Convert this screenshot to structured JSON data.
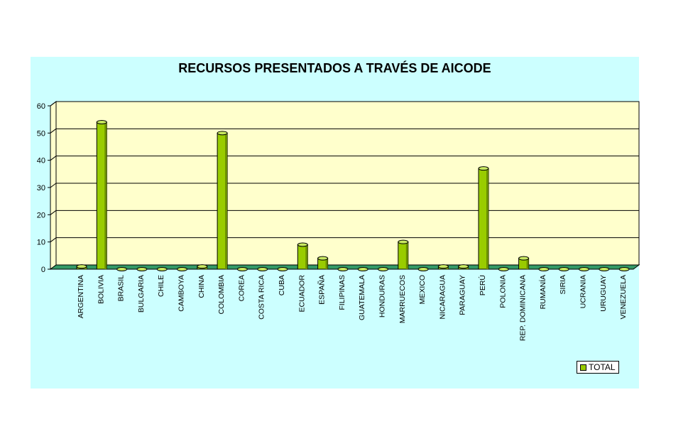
{
  "colors": {
    "background": "#ccffff",
    "plot": "#ffffcc",
    "floor": "#339966",
    "bar": "#99cc00",
    "bar_dark": "#6b8f00",
    "bar_top": "#c8e860"
  },
  "chart_data": {
    "type": "bar",
    "title": "RECURSOS  PRESENTADOS A TRAVÉS DE AICODE",
    "categories": [
      "ARGENTINA",
      "BOLIVIA",
      "BRASIL",
      "BULGARIA",
      "CHILE",
      "CAMBOYA",
      "CHINA",
      "COLOMBIA",
      "COREA",
      "COSTA RICA",
      "CUBA",
      "ECUADOR",
      "ESPAÑA",
      "FILIPINAS",
      "GUATEMALA",
      "HONDURAS",
      "MARRUECOS",
      "MEXICO",
      "NICARAGUA",
      "PARAGUAY",
      "PERÚ",
      "POLONIA",
      "REP. DOMINICANA",
      "RUMANÍA",
      "SIRIA",
      "UCRANIA",
      "URUGUAY",
      "VENEZUELA"
    ],
    "series": [
      {
        "name": "TOTAL",
        "values": [
          1,
          54,
          0,
          0,
          0,
          0,
          1,
          50,
          0,
          0,
          0,
          9,
          4,
          0,
          0,
          0,
          10,
          0,
          1,
          1,
          37,
          0,
          4,
          0,
          0,
          0,
          0,
          0
        ]
      }
    ],
    "ylim": [
      0,
      60
    ],
    "yticks": [
      "0",
      "10",
      "20",
      "30",
      "40",
      "50",
      "60"
    ],
    "grid": true,
    "legend": "bottom-right"
  }
}
